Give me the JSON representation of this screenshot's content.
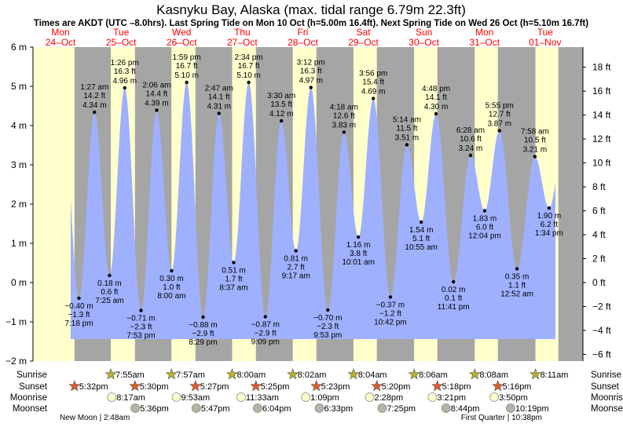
{
  "chart_data": {
    "type": "area",
    "title": "Kasnyku Bay, Alaska (max. tidal range 6.79m 22.3ft)",
    "subtitle": "Times are AKDT (UTC –8.0hrs). Last Spring Tide on Mon 10 Oct (h=5.00m 16.4ft). Next Spring Tide on Wed 26 Oct (h=5.10m 16.7ft)",
    "days": [
      {
        "dow": "Mon",
        "date": "24–Oct"
      },
      {
        "dow": "Tue",
        "date": "25–Oct"
      },
      {
        "dow": "Wed",
        "date": "26–Oct"
      },
      {
        "dow": "Thu",
        "date": "27–Oct"
      },
      {
        "dow": "Fri",
        "date": "28–Oct"
      },
      {
        "dow": "Sat",
        "date": "29–Oct"
      },
      {
        "dow": "Sun",
        "date": "30–Oct"
      },
      {
        "dow": "Mon",
        "date": "31–Oct"
      },
      {
        "dow": "Tue",
        "date": "01–Nov"
      }
    ],
    "y_left": {
      "unit": "m",
      "range": [
        -2,
        6
      ],
      "ticks": [
        "6 m",
        "5 m",
        "4 m",
        "3 m",
        "2 m",
        "1 m",
        "0 m",
        "−1 m",
        "−2 m"
      ]
    },
    "y_right": {
      "unit": "ft",
      "ticks": [
        "18 ft",
        "16 ft",
        "14 ft",
        "12 ft",
        "10 ft",
        "8 ft",
        "6 ft",
        "4 ft",
        "2 ft",
        "0 ft",
        "−2 ft",
        "−4 ft",
        "−6 ft"
      ]
    },
    "tides": [
      {
        "day": 0,
        "time": "7:18 pm",
        "m": "−0.40 m",
        "ft": "−1.3 ft",
        "v": -0.4,
        "type": "low"
      },
      {
        "day": 1,
        "time": "1:27 am",
        "m": "4.34 m",
        "ft": "14.2 ft",
        "v": 4.34,
        "type": "high"
      },
      {
        "day": 1,
        "time": "7:25 am",
        "m": "0.18 m",
        "ft": "0.6 ft",
        "v": 0.18,
        "type": "low"
      },
      {
        "day": 1,
        "time": "1:26 pm",
        "m": "4.96 m",
        "ft": "16.3 ft",
        "v": 4.96,
        "type": "high"
      },
      {
        "day": 1,
        "time": "7:53 pm",
        "m": "−0.71 m",
        "ft": "−2.3 ft",
        "v": -0.71,
        "type": "low"
      },
      {
        "day": 2,
        "time": "2:06 am",
        "m": "4.39 m",
        "ft": "14.4 ft",
        "v": 4.39,
        "type": "high"
      },
      {
        "day": 2,
        "time": "8:00 am",
        "m": "0.30 m",
        "ft": "1.0 ft",
        "v": 0.3,
        "type": "low"
      },
      {
        "day": 2,
        "time": "1:59 pm",
        "m": "5.10 m",
        "ft": "16.7 ft",
        "v": 5.1,
        "type": "high"
      },
      {
        "day": 2,
        "time": "8:29 pm",
        "m": "−0.88 m",
        "ft": "−2.9 ft",
        "v": -0.88,
        "type": "low"
      },
      {
        "day": 3,
        "time": "2:47 am",
        "m": "4.31 m",
        "ft": "14.1 ft",
        "v": 4.31,
        "type": "high"
      },
      {
        "day": 3,
        "time": "8:37 am",
        "m": "0.51 m",
        "ft": "1.7 ft",
        "v": 0.51,
        "type": "low"
      },
      {
        "day": 3,
        "time": "2:34 pm",
        "m": "5.10 m",
        "ft": "16.7 ft",
        "v": 5.1,
        "type": "high"
      },
      {
        "day": 3,
        "time": "9:09 pm",
        "m": "−0.87 m",
        "ft": "−2.9 ft",
        "v": -0.87,
        "type": "low"
      },
      {
        "day": 4,
        "time": "3:30 am",
        "m": "4.12 m",
        "ft": "13.5 ft",
        "v": 4.12,
        "type": "high"
      },
      {
        "day": 4,
        "time": "9:17 am",
        "m": "0.81 m",
        "ft": "2.7 ft",
        "v": 0.81,
        "type": "low"
      },
      {
        "day": 4,
        "time": "3:12 pm",
        "m": "4.97 m",
        "ft": "16.3 ft",
        "v": 4.97,
        "type": "high"
      },
      {
        "day": 4,
        "time": "9:53 pm",
        "m": "−0.70 m",
        "ft": "−2.3 ft",
        "v": -0.7,
        "type": "low"
      },
      {
        "day": 5,
        "time": "4:18 am",
        "m": "3.83 m",
        "ft": "12.6 ft",
        "v": 3.83,
        "type": "high"
      },
      {
        "day": 5,
        "time": "10:01 am",
        "m": "1.16 m",
        "ft": "3.8 ft",
        "v": 1.16,
        "type": "low"
      },
      {
        "day": 5,
        "time": "3:56 pm",
        "m": "4.69 m",
        "ft": "15.4 ft",
        "v": 4.69,
        "type": "high"
      },
      {
        "day": 5,
        "time": "10:42 pm",
        "m": "−0.37 m",
        "ft": "−1.2 ft",
        "v": -0.37,
        "type": "low"
      },
      {
        "day": 6,
        "time": "5:14 am",
        "m": "3.51 m",
        "ft": "11.5 ft",
        "v": 3.51,
        "type": "high"
      },
      {
        "day": 6,
        "time": "10:55 am",
        "m": "1.54 m",
        "ft": "5.1 ft",
        "v": 1.54,
        "type": "low"
      },
      {
        "day": 6,
        "time": "4:48 pm",
        "m": "4.30 m",
        "ft": "14.1 ft",
        "v": 4.3,
        "type": "high"
      },
      {
        "day": 6,
        "time": "11:41 pm",
        "m": "0.02 m",
        "ft": "0.1 ft",
        "v": 0.02,
        "type": "low"
      },
      {
        "day": 7,
        "time": "6:28 am",
        "m": "3.24 m",
        "ft": "10.6 ft",
        "v": 3.24,
        "type": "high"
      },
      {
        "day": 7,
        "time": "12:04 pm",
        "m": "1.83 m",
        "ft": "6.0 ft",
        "v": 1.83,
        "type": "low"
      },
      {
        "day": 7,
        "time": "5:55 pm",
        "m": "3.87 m",
        "ft": "12.7 ft",
        "v": 3.87,
        "type": "high"
      },
      {
        "day": 8,
        "time": "12:52 am",
        "m": "0.35 m",
        "ft": "1.1 ft",
        "v": 0.35,
        "type": "low"
      },
      {
        "day": 8,
        "time": "7:58 am",
        "m": "3.21 m",
        "ft": "10.5 ft",
        "v": 3.21,
        "type": "high"
      },
      {
        "day": 8,
        "time": "1:34 pm",
        "m": "1.90 m",
        "ft": "6.2 ft",
        "v": 1.9,
        "type": "low"
      }
    ],
    "rows": {
      "sunrise": {
        "label": "Sunrise",
        "items": [
          {
            "day": 1,
            "t": "7:55am"
          },
          {
            "day": 2,
            "t": "7:57am"
          },
          {
            "day": 3,
            "t": "8:00am"
          },
          {
            "day": 4,
            "t": "8:02am"
          },
          {
            "day": 5,
            "t": "8:04am"
          },
          {
            "day": 6,
            "t": "8:06am"
          },
          {
            "day": 7,
            "t": "8:08am"
          },
          {
            "day": 8,
            "t": "8:11am"
          }
        ]
      },
      "sunset": {
        "label": "Sunset",
        "items": [
          {
            "day": 0,
            "t": "5:32pm"
          },
          {
            "day": 1,
            "t": "5:30pm"
          },
          {
            "day": 2,
            "t": "5:27pm"
          },
          {
            "day": 3,
            "t": "5:25pm"
          },
          {
            "day": 4,
            "t": "5:23pm"
          },
          {
            "day": 5,
            "t": "5:20pm"
          },
          {
            "day": 6,
            "t": "5:18pm"
          },
          {
            "day": 7,
            "t": "5:16pm"
          }
        ]
      },
      "moonrise": {
        "label": "Moonrise",
        "items": [
          {
            "day": 1,
            "t": "8:17am"
          },
          {
            "day": 2,
            "t": "9:53am"
          },
          {
            "day": 3,
            "t": "11:33am"
          },
          {
            "day": 4,
            "t": "1:09pm"
          },
          {
            "day": 5,
            "t": "2:28pm"
          },
          {
            "day": 6,
            "t": "3:21pm"
          },
          {
            "day": 7,
            "t": "3:50pm"
          }
        ]
      },
      "moonset": {
        "label": "Moonset",
        "items": [
          {
            "day": 1,
            "t": "5:36pm"
          },
          {
            "day": 2,
            "t": "5:47pm"
          },
          {
            "day": 3,
            "t": "6:04pm"
          },
          {
            "day": 4,
            "t": "6:33pm"
          },
          {
            "day": 5,
            "t": "7:25pm"
          },
          {
            "day": 6,
            "t": "8:44pm"
          },
          {
            "day": 7,
            "t": "10:19pm"
          }
        ]
      }
    },
    "moon_phases": [
      "New Moon | 2:48am",
      "First Quarter | 10:38pm"
    ],
    "colors": {
      "day": "#ffffcc",
      "night": "#a5a5a5",
      "water": "#9fb0ff",
      "date": "#ff0000",
      "sunrise": "#b8b030",
      "sunset": "#e05a2a",
      "moonrise": "#ffffcc",
      "moonset": "#b5b5a5"
    }
  }
}
